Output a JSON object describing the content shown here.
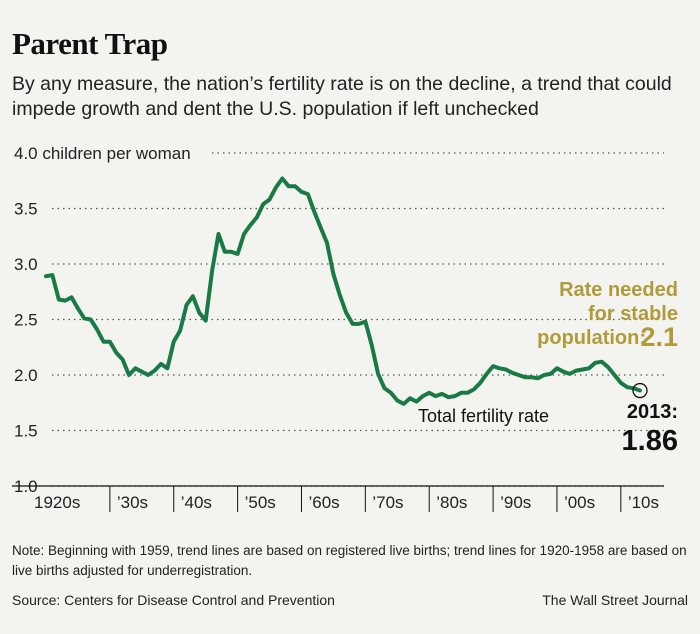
{
  "title": "Parent Trap",
  "subtitle": "By any measure, the nation’s fertility rate is on the decline, a trend that could impede growth and dent the U.S. population if left unchecked",
  "note": "Note: Beginning with 1959, trend lines are based on registered live births; trend lines for 1920-1958 are based on live births adjusted for underregistration.",
  "source": "Source: Centers for Disease Control and Prevention",
  "credit": "The Wall Street Journal",
  "colors": {
    "line": "#1a7a46",
    "accent": "#b09a3a",
    "background": "#f3f3ef"
  },
  "chart_data": {
    "type": "line",
    "ylim": [
      1.0,
      4.0
    ],
    "xlim": [
      1920,
      2013
    ],
    "y_ticks": [
      "1.0",
      "1.5",
      "2.0",
      "2.5",
      "3.0",
      "3.5",
      "4.0 children per woman"
    ],
    "x_ticks": [
      "1920s",
      "’30s",
      "’40s",
      "’50s",
      "’60s",
      "’70s",
      "’80s",
      "’90s",
      "’00s",
      "’10s"
    ],
    "grid": "horizontal dotted",
    "series": [
      {
        "name": "Total fertility rate",
        "x": [
          1920,
          1921,
          1922,
          1923,
          1924,
          1925,
          1926,
          1927,
          1928,
          1929,
          1930,
          1931,
          1932,
          1933,
          1934,
          1935,
          1936,
          1937,
          1938,
          1939,
          1940,
          1941,
          1942,
          1943,
          1944,
          1945,
          1946,
          1947,
          1948,
          1949,
          1950,
          1951,
          1952,
          1953,
          1954,
          1955,
          1956,
          1957,
          1958,
          1959,
          1960,
          1961,
          1962,
          1963,
          1964,
          1965,
          1966,
          1967,
          1968,
          1969,
          1970,
          1971,
          1972,
          1973,
          1974,
          1975,
          1976,
          1977,
          1978,
          1979,
          1980,
          1981,
          1982,
          1983,
          1984,
          1985,
          1986,
          1987,
          1988,
          1989,
          1990,
          1991,
          1992,
          1993,
          1994,
          1995,
          1996,
          1997,
          1998,
          1999,
          2000,
          2001,
          2002,
          2003,
          2004,
          2005,
          2006,
          2007,
          2008,
          2009,
          2010,
          2011,
          2012,
          2013
        ],
        "y": [
          2.89,
          2.9,
          2.68,
          2.67,
          2.7,
          2.6,
          2.51,
          2.5,
          2.41,
          2.3,
          2.3,
          2.2,
          2.14,
          2.0,
          2.06,
          2.03,
          2.0,
          2.04,
          2.1,
          2.06,
          2.3,
          2.4,
          2.63,
          2.71,
          2.56,
          2.49,
          2.94,
          3.27,
          3.11,
          3.11,
          3.09,
          3.27,
          3.35,
          3.42,
          3.54,
          3.58,
          3.69,
          3.77,
          3.7,
          3.7,
          3.65,
          3.63,
          3.47,
          3.33,
          3.19,
          2.91,
          2.72,
          2.56,
          2.46,
          2.46,
          2.48,
          2.27,
          2.01,
          1.88,
          1.84,
          1.77,
          1.74,
          1.79,
          1.76,
          1.81,
          1.84,
          1.81,
          1.83,
          1.8,
          1.81,
          1.84,
          1.84,
          1.87,
          1.93,
          2.01,
          2.08,
          2.06,
          2.05,
          2.02,
          2.0,
          1.98,
          1.98,
          1.97,
          2.0,
          2.01,
          2.06,
          2.03,
          2.01,
          2.04,
          2.05,
          2.06,
          2.11,
          2.12,
          2.07,
          2.0,
          1.93,
          1.89,
          1.88,
          1.86
        ]
      }
    ],
    "annotations": {
      "stable_line1": "Rate needed",
      "stable_line2": "for stable",
      "stable_line3_prefix": "population: ",
      "stable_value": "2.1",
      "endpoint_label": "2013:",
      "endpoint_value": "1.86",
      "series_label": "Total fertility rate"
    }
  }
}
